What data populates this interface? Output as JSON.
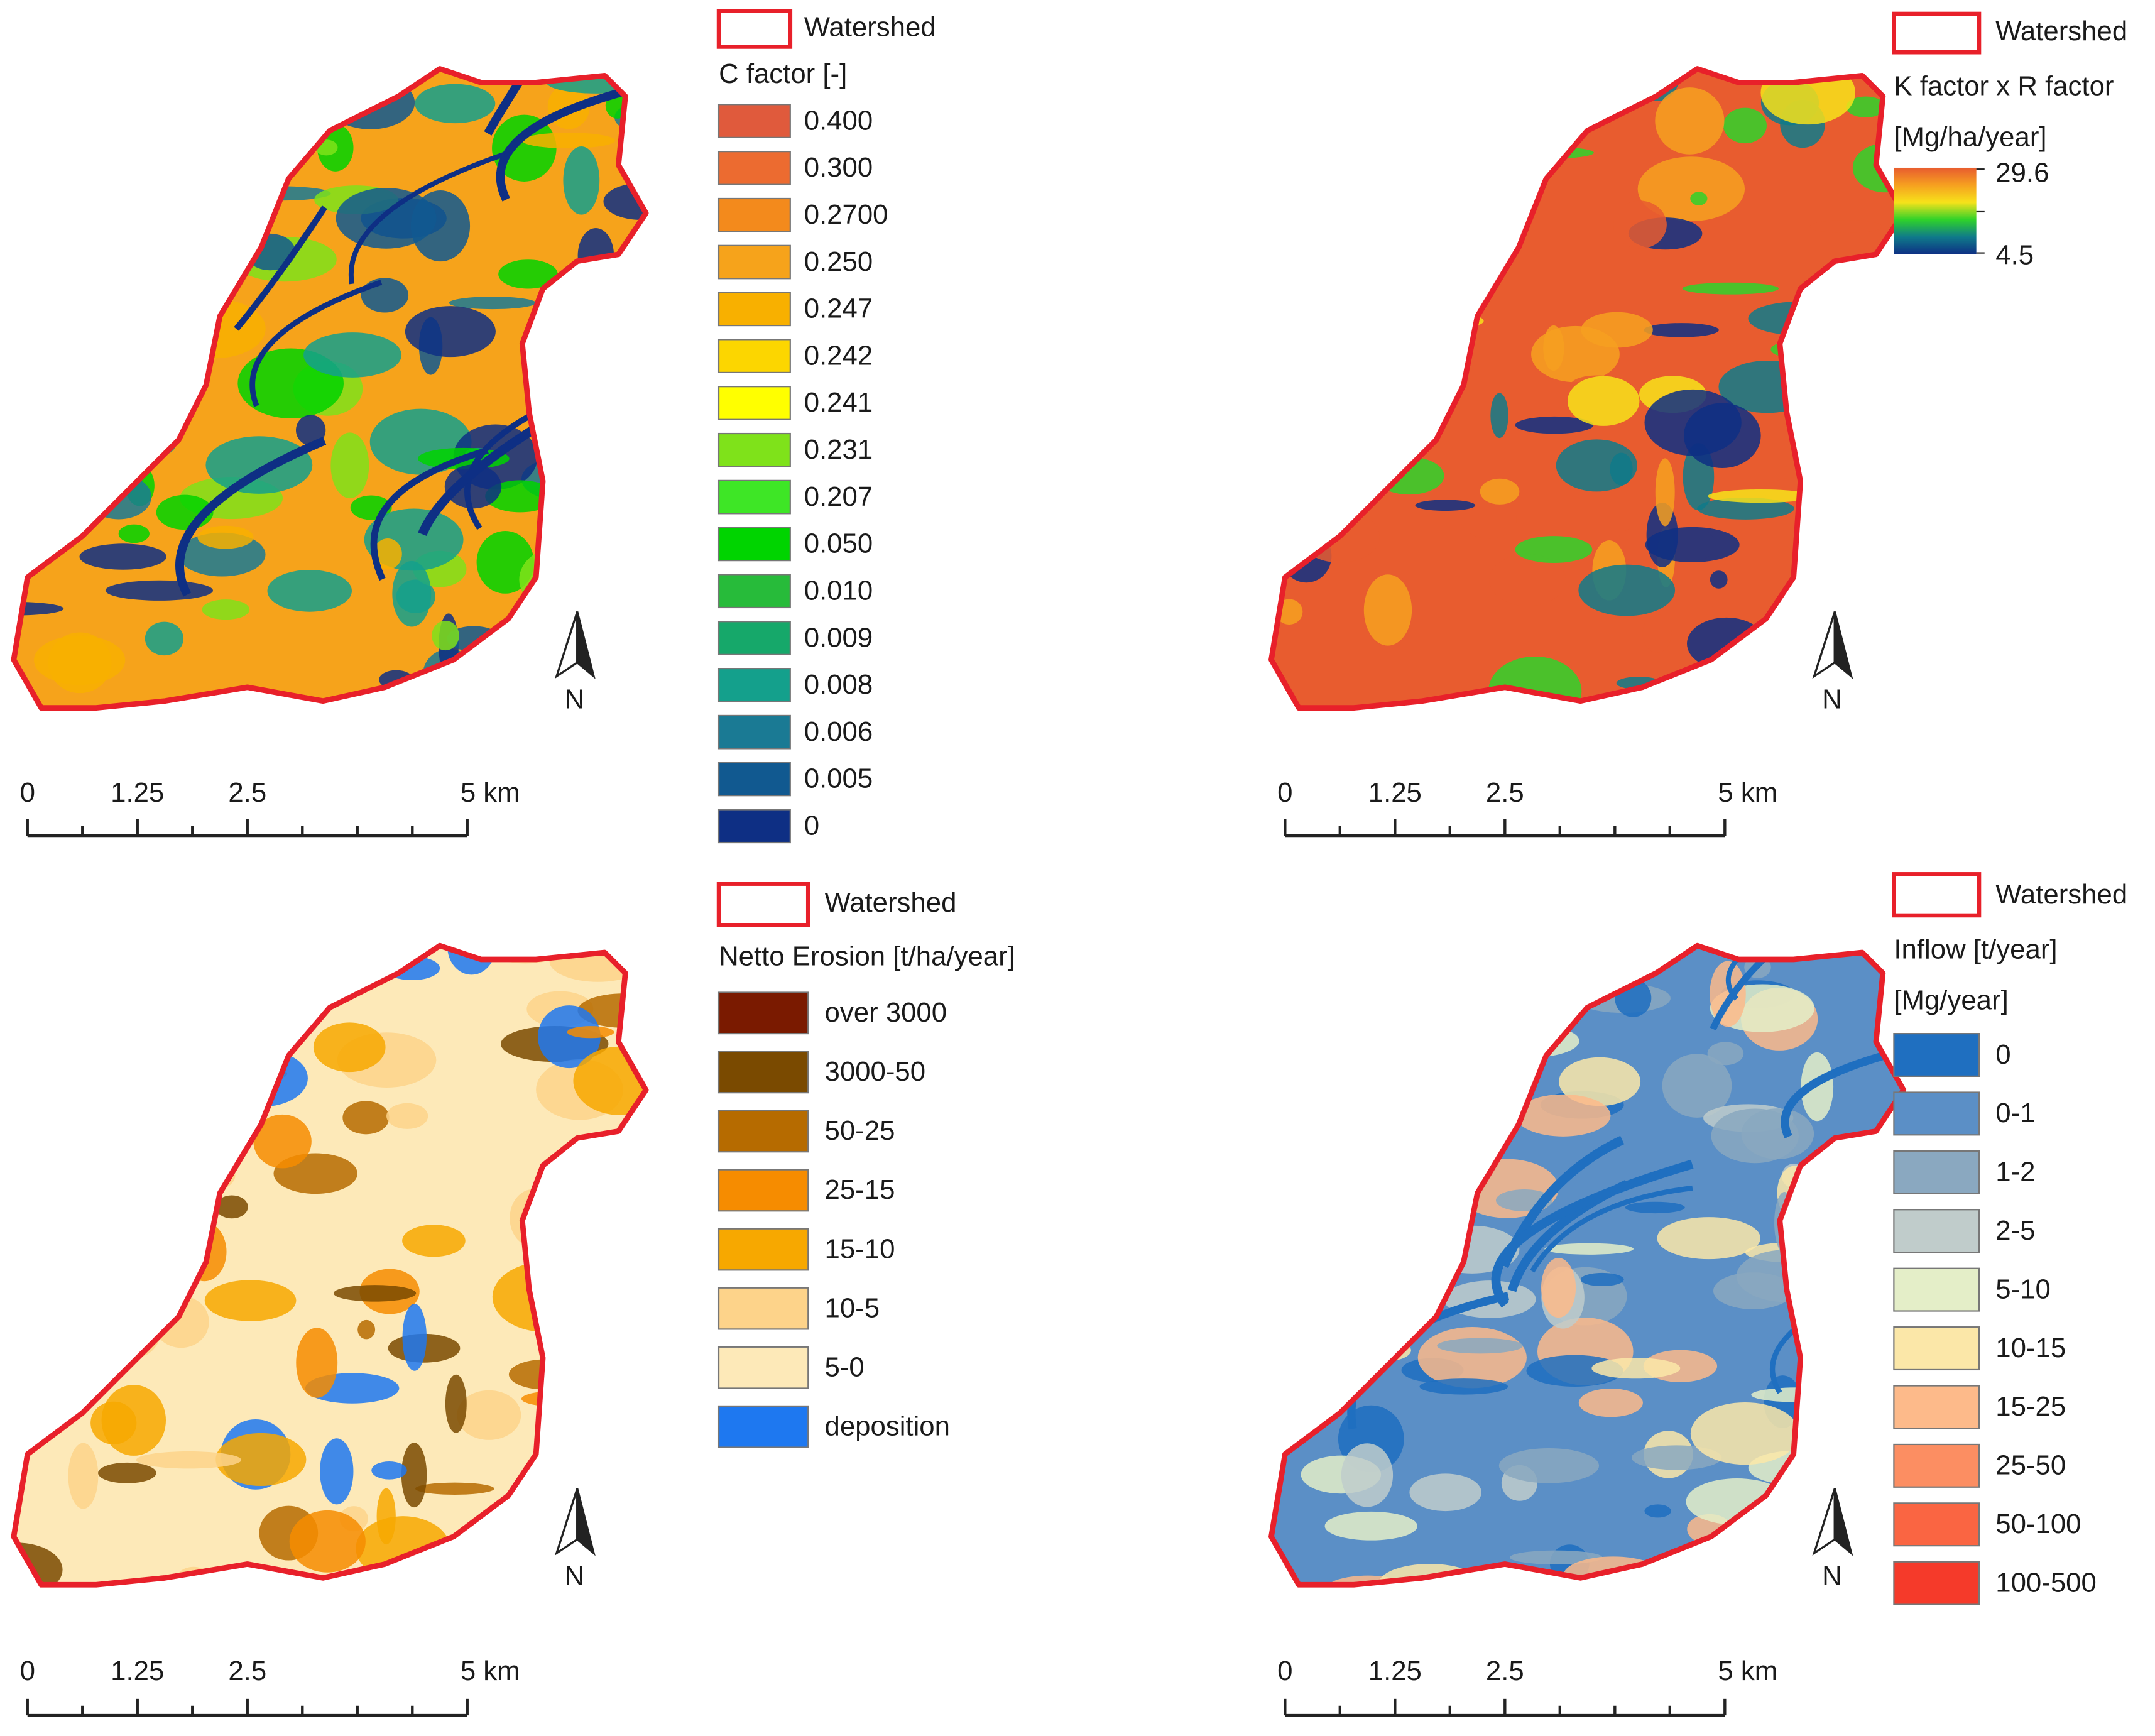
{
  "outline_color": "#e8202a",
  "panels": [
    {
      "watershed": "Watershed",
      "legend_title": "C factor [-]",
      "legend": [
        {
          "label": "0.400",
          "color": "#e05a3c"
        },
        {
          "label": "0.300",
          "color": "#ec6b30"
        },
        {
          "label": "0.2700",
          "color": "#f38a1c"
        },
        {
          "label": "0.250",
          "color": "#f6a31b"
        },
        {
          "label": "0.247",
          "color": "#f8b000"
        },
        {
          "label": "0.242",
          "color": "#fcd600"
        },
        {
          "label": "0.241",
          "color": "#ffff00"
        },
        {
          "label": "0.231",
          "color": "#7fe21a"
        },
        {
          "label": "0.207",
          "color": "#3ee626"
        },
        {
          "label": "0.050",
          "color": "#00d400"
        },
        {
          "label": "0.010",
          "color": "#27bb3a"
        },
        {
          "label": "0.009",
          "color": "#16a86a"
        },
        {
          "label": "0.008",
          "color": "#14a08c"
        },
        {
          "label": "0.006",
          "color": "#1a7a94"
        },
        {
          "label": "0.005",
          "color": "#115990"
        },
        {
          "label": "0",
          "color": "#0e2f84"
        }
      ],
      "scale": [
        "0",
        "1.25",
        "2.5",
        "5 km"
      ],
      "north": "N"
    },
    {
      "watershed": "Watershed",
      "legend_title": "K factor x R factor",
      "legend_subtitle": "[Mg/ha/year]",
      "gradient": {
        "max": "29.6",
        "min": "4.5",
        "colors": [
          "#e85c2f",
          "#f6a020",
          "#f7e21a",
          "#2fd22a",
          "#0f7a8a",
          "#0e2f84"
        ]
      },
      "scale": [
        "0",
        "1.25",
        "2.5",
        "5 km"
      ],
      "north": "N"
    },
    {
      "watershed": "Watershed",
      "legend_title": "Netto Erosion [t/ha/year]",
      "legend": [
        {
          "label": "over 3000",
          "color": "#7a1a00"
        },
        {
          "label": "3000-50",
          "color": "#7a4a00"
        },
        {
          "label": "50-25",
          "color": "#b66b00"
        },
        {
          "label": "25-15",
          "color": "#f68c00"
        },
        {
          "label": "15-10",
          "color": "#f7a800"
        },
        {
          "label": "10-5",
          "color": "#fdd38a"
        },
        {
          "label": "5-0",
          "color": "#fde9b8"
        },
        {
          "label": "deposition",
          "color": "#1e78f0"
        }
      ],
      "scale": [
        "0",
        "1.25",
        "2.5",
        "5 km"
      ],
      "north": "N"
    },
    {
      "watershed": "Watershed",
      "legend_title": "Inflow [t/year]",
      "legend_subtitle": "[Mg/year]",
      "legend": [
        {
          "label": "0",
          "color": "#1f6fc0"
        },
        {
          "label": "0-1",
          "color": "#5b8fc6"
        },
        {
          "label": "1-2",
          "color": "#8aa8c0"
        },
        {
          "label": "2-5",
          "color": "#c0cccb"
        },
        {
          "label": "5-10",
          "color": "#e4eec8"
        },
        {
          "label": "10-15",
          "color": "#fbe7a8"
        },
        {
          "label": "15-25",
          "color": "#fdba8a"
        },
        {
          "label": "25-50",
          "color": "#fc8e62"
        },
        {
          "label": "50-100",
          "color": "#fa6542"
        },
        {
          "label": "100-500",
          "color": "#f53a2a"
        }
      ],
      "scale": [
        "0",
        "1.25",
        "2.5",
        "5 km"
      ],
      "north": "N"
    }
  ]
}
